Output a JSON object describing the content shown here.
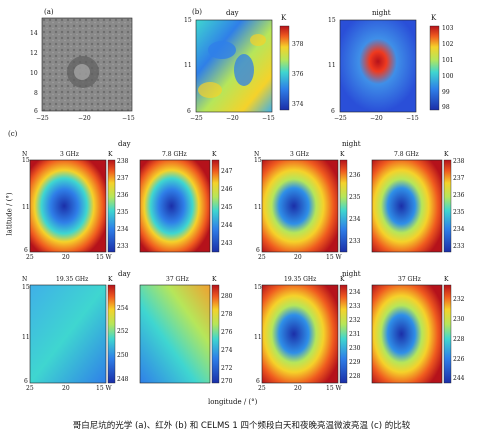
{
  "panel_labels": {
    "a": "(a)",
    "b": "(b)",
    "c": "(c)"
  },
  "panel_a": {
    "y_ticks": [
      "14",
      "12",
      "10",
      "8",
      "6"
    ],
    "x_ticks": [
      "−25",
      "−20",
      "−15"
    ]
  },
  "panel_b": {
    "day": {
      "title": "day",
      "unit": "K",
      "y_ticks": [
        "15",
        "11",
        "6"
      ],
      "x_ticks": [
        "−25",
        "−20",
        "−15"
      ],
      "cbar_ticks": [
        "378",
        "376",
        "374"
      ]
    },
    "night": {
      "title": "night",
      "unit": "K",
      "y_ticks": [
        "15",
        "11",
        "6"
      ],
      "x_ticks": [
        "−25",
        "−20",
        "−15"
      ],
      "cbar_ticks": [
        "103",
        "102",
        "101",
        "100",
        "99",
        "98"
      ]
    }
  },
  "panel_c": {
    "day_label": "day",
    "night_label": "night",
    "y_axis_label": "latitude / (°)",
    "x_axis_label": "longitude / (°)",
    "row1": [
      {
        "freq": "3 GHz",
        "unit": "K",
        "n": "N",
        "cbar_ticks": [
          "238",
          "237",
          "236",
          "235",
          "234",
          "233"
        ]
      },
      {
        "freq": "7.8 GHz",
        "unit": "K",
        "cbar_ticks": [
          "247",
          "246",
          "245",
          "244",
          "243"
        ]
      },
      {
        "freq": "3 GHz",
        "unit": "K",
        "n": "N",
        "cbar_ticks": [
          "236",
          "235",
          "234",
          "233"
        ]
      },
      {
        "freq": "7.8 GHz",
        "unit": "K",
        "cbar_ticks": [
          "238",
          "237",
          "236",
          "235",
          "234",
          "233"
        ]
      }
    ],
    "row2": [
      {
        "freq": "19.35 GHz",
        "unit": "K",
        "n": "N",
        "cbar_ticks": [
          "254",
          "252",
          "250",
          "248"
        ]
      },
      {
        "freq": "37 GHz",
        "unit": "K",
        "cbar_ticks": [
          "280",
          "278",
          "276",
          "274",
          "272",
          "270"
        ]
      },
      {
        "freq": "19.35 GHz",
        "unit": "K",
        "cbar_ticks": [
          "234",
          "233",
          "232",
          "231",
          "230",
          "229",
          "228"
        ]
      },
      {
        "freq": "37 GHz",
        "unit": "K",
        "cbar_ticks": [
          "232",
          "230",
          "228",
          "226",
          "244"
        ]
      }
    ],
    "y_ticks": [
      "15",
      "11",
      "6"
    ],
    "x_ticks": [
      "25",
      "20",
      "15 W"
    ]
  },
  "caption": "哥白尼坑的光学 (a)、红外 (b) 和 CELMS 1 四个频段白天和夜晚亮温微波亮温 (c) 的比较",
  "colors": {
    "jet_low": "#1b2fa8",
    "jet_mid": "#3fd6a8",
    "jet_high": "#b5121b"
  }
}
